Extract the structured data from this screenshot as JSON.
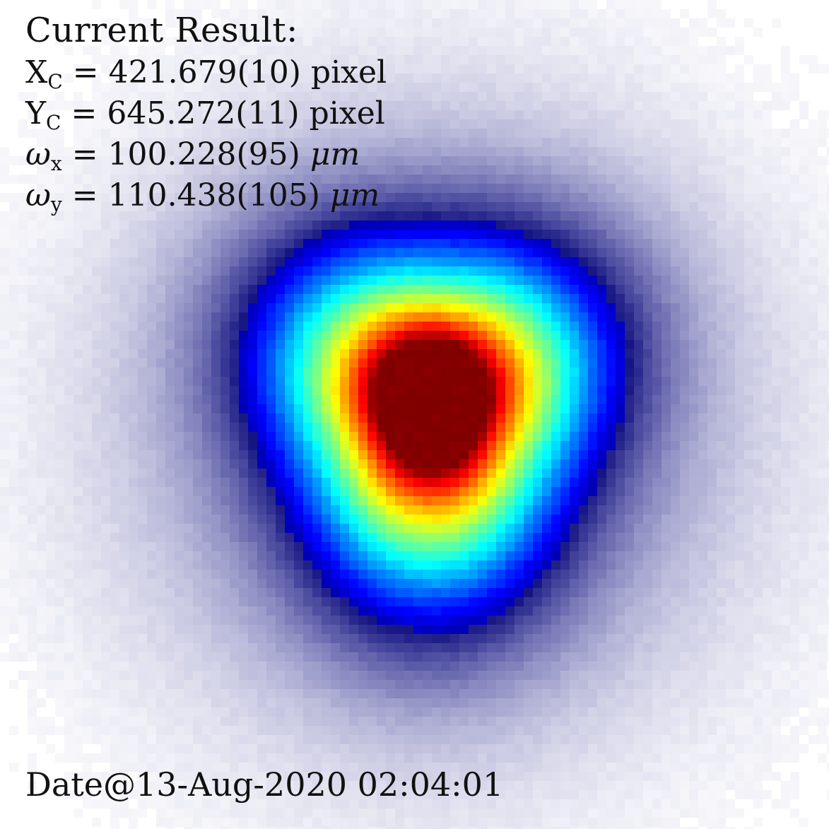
{
  "result": {
    "title": "Current Result:",
    "lines": [
      {
        "symbol": "X",
        "subscript": "C",
        "eq": "=",
        "value": "421.679(10)",
        "unit": "pixel"
      },
      {
        "symbol": "Y",
        "subscript": "C",
        "eq": "=",
        "value": "645.272(11)",
        "unit": "pixel"
      },
      {
        "symbol": "ω",
        "subscript": "x",
        "eq": "=",
        "value": "100.228(95)",
        "unit": "μm"
      },
      {
        "symbol": "ω",
        "subscript": "y",
        "eq": "=",
        "value": "110.438(105)",
        "unit": "μm"
      }
    ]
  },
  "footer": {
    "date": "Date@13-Aug-2020 02:04:01"
  },
  "image": {
    "colormap": "jet-with-white-low-end",
    "background": "#ffffff"
  }
}
